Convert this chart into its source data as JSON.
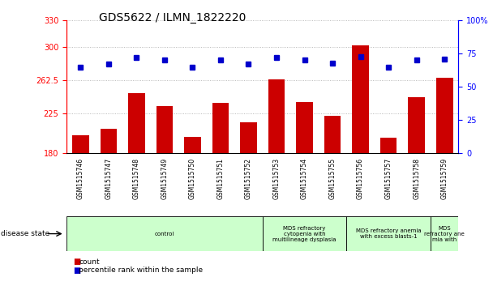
{
  "title": "GDS5622 / ILMN_1822220",
  "samples": [
    "GSM1515746",
    "GSM1515747",
    "GSM1515748",
    "GSM1515749",
    "GSM1515750",
    "GSM1515751",
    "GSM1515752",
    "GSM1515753",
    "GSM1515754",
    "GSM1515755",
    "GSM1515756",
    "GSM1515757",
    "GSM1515758",
    "GSM1515759"
  ],
  "counts": [
    200,
    207,
    248,
    233,
    198,
    237,
    215,
    263,
    238,
    222,
    302,
    197,
    243,
    265
  ],
  "percentiles": [
    65,
    67,
    72,
    70,
    65,
    70,
    67,
    72,
    70,
    68,
    73,
    65,
    70,
    71
  ],
  "ylim_left": [
    180,
    330
  ],
  "ylim_right": [
    0,
    100
  ],
  "yticks_left": [
    180,
    225,
    262.5,
    300,
    330
  ],
  "ytick_labels_left": [
    "180",
    "225",
    "262.5",
    "300",
    "330"
  ],
  "yticks_right": [
    0,
    25,
    50,
    75,
    100
  ],
  "ytick_labels_right": [
    "0",
    "25",
    "50",
    "75",
    "100%"
  ],
  "bar_color": "#cc0000",
  "dot_color": "#0000cc",
  "groups": [
    {
      "label": "control",
      "start": 0,
      "end": 7
    },
    {
      "label": "MDS refractory\ncytopenia with\nmultilineage dysplasia",
      "start": 7,
      "end": 10
    },
    {
      "label": "MDS refractory anemia\nwith excess blasts-1",
      "start": 10,
      "end": 13
    },
    {
      "label": "MDS\nrefractory ane\nmia with",
      "start": 13,
      "end": 14
    }
  ],
  "disease_state_label": "disease state",
  "legend_count_label": "count",
  "legend_percentile_label": "percentile rank within the sample",
  "grid_color": "#aaaaaa",
  "background_color": "#ffffff",
  "plot_bg_color": "#ffffff",
  "xlabel_area_color": "#cccccc",
  "group_bg_color": "#ccffcc",
  "title_fontsize": 10,
  "tick_fontsize": 7,
  "label_fontsize": 6
}
